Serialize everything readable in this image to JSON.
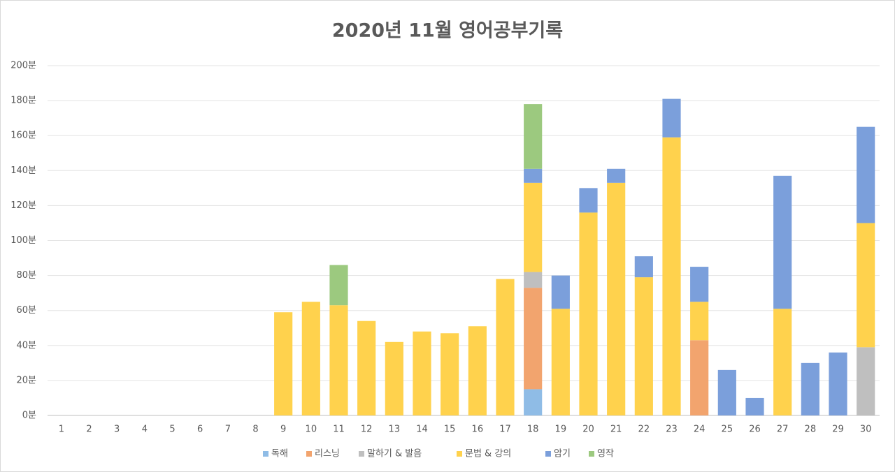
{
  "chart_data": {
    "type": "bar",
    "stacked": true,
    "title": "2020년 11월 영어공부기록",
    "categories": [
      "1",
      "2",
      "3",
      "4",
      "5",
      "6",
      "7",
      "8",
      "9",
      "10",
      "11",
      "12",
      "13",
      "14",
      "15",
      "16",
      "17",
      "18",
      "19",
      "20",
      "21",
      "22",
      "23",
      "24",
      "25",
      "26",
      "27",
      "28",
      "29",
      "30"
    ],
    "series": [
      {
        "name": "독해",
        "color": "#8fbce6",
        "values": [
          null,
          null,
          null,
          null,
          null,
          null,
          null,
          null,
          null,
          null,
          null,
          null,
          null,
          null,
          null,
          null,
          null,
          15,
          null,
          null,
          null,
          null,
          null,
          null,
          null,
          null,
          null,
          null,
          null,
          null
        ]
      },
      {
        "name": "리스닝",
        "color": "#f2a46e",
        "values": [
          null,
          null,
          null,
          null,
          null,
          null,
          null,
          null,
          null,
          null,
          null,
          null,
          null,
          null,
          null,
          null,
          null,
          58,
          null,
          null,
          null,
          null,
          null,
          43,
          null,
          null,
          null,
          null,
          null,
          null
        ]
      },
      {
        "name": "말하기 & 발음",
        "color": "#bfbfbf",
        "values": [
          null,
          null,
          null,
          null,
          null,
          null,
          null,
          null,
          null,
          null,
          null,
          null,
          null,
          null,
          null,
          null,
          null,
          9,
          null,
          null,
          null,
          null,
          null,
          null,
          null,
          null,
          null,
          null,
          null,
          39
        ]
      },
      {
        "name": "문법 & 강의",
        "color": "#ffd24d",
        "values": [
          null,
          null,
          null,
          null,
          null,
          null,
          null,
          null,
          59,
          65,
          63,
          54,
          42,
          48,
          47,
          51,
          78,
          51,
          61,
          116,
          133,
          79,
          159,
          22,
          null,
          null,
          61,
          null,
          null,
          71
        ]
      },
      {
        "name": "암기",
        "color": "#7b9fdb",
        "values": [
          null,
          null,
          null,
          null,
          null,
          null,
          null,
          null,
          null,
          null,
          null,
          null,
          null,
          null,
          null,
          null,
          null,
          8,
          19,
          14,
          8,
          12,
          22,
          20,
          26,
          10,
          76,
          30,
          36,
          55
        ]
      },
      {
        "name": "영작",
        "color": "#9cc97f",
        "values": [
          null,
          null,
          null,
          null,
          null,
          null,
          null,
          null,
          null,
          null,
          23,
          null,
          null,
          null,
          null,
          null,
          null,
          37,
          null,
          null,
          null,
          null,
          null,
          null,
          null,
          null,
          null,
          null,
          null,
          null
        ]
      }
    ],
    "ylim": [
      0,
      200
    ],
    "yticks": [
      {
        "value": 0,
        "label": "0분"
      },
      {
        "value": 20,
        "label": "20분"
      },
      {
        "value": 40,
        "label": "40분"
      },
      {
        "value": 60,
        "label": "60분"
      },
      {
        "value": 80,
        "label": "80분"
      },
      {
        "value": 100,
        "label": "100분"
      },
      {
        "value": 120,
        "label": "120분"
      },
      {
        "value": 140,
        "label": "140분"
      },
      {
        "value": 160,
        "label": "160분"
      },
      {
        "value": 180,
        "label": "180분"
      },
      {
        "value": 200,
        "label": "200분"
      }
    ],
    "grid": true,
    "legend": "bottom"
  }
}
